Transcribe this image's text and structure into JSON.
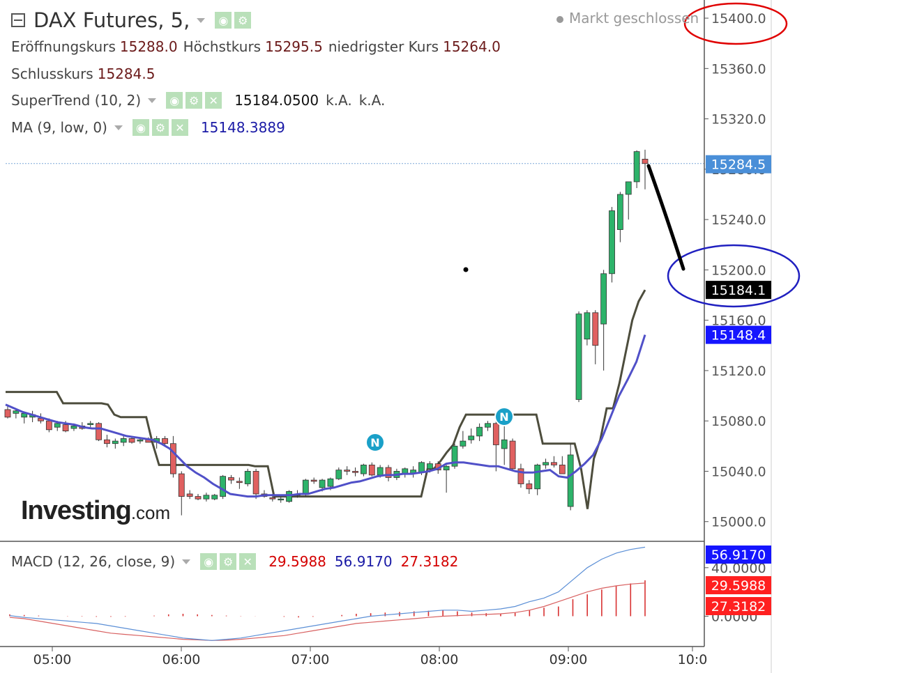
{
  "header": {
    "title": "DAX Futures, 5,",
    "status": "Markt geschlossen",
    "open_label": "Eröffnungskurs",
    "open": "15288.0",
    "high_label": "Höchstkurs",
    "high": "15295.5",
    "low_label": "niedrigster Kurs",
    "low": "15264.0",
    "close_label": "Schlusskurs",
    "close": "15284.5"
  },
  "indicators": {
    "supertrend": {
      "label": "SuperTrend (10, 2)",
      "value": "15184.0500",
      "na1": "k.A.",
      "na2": "k.A."
    },
    "ma": {
      "label": "MA (9, low, 0)",
      "value": "15148.3889"
    },
    "macd": {
      "label": "MACD (12, 26, close, 9)",
      "hist": "29.5988",
      "macd": "56.9170",
      "signal": "27.3182"
    }
  },
  "branding": {
    "logo_main": "Investing",
    "logo_suffix": ".com"
  },
  "colors": {
    "up": "#2db36a",
    "down": "#e06060",
    "supertrend": "#4d4d3d",
    "ma": "#5050c8",
    "macd_line": "#5b8fd6",
    "signal_line": "#d86060",
    "hist": "#d83030",
    "annot_red": "#e00000",
    "annot_blue": "#2020c0",
    "tag_blue": "#1515ff",
    "tag_price": "#4a8fd8",
    "tag_red": "#ff2020"
  },
  "chart_data": {
    "type": "candlestick",
    "instrument": "DAX Futures",
    "interval": "5",
    "x_ticks": [
      "05:00",
      "06:00",
      "07:00",
      "08:00",
      "09:00",
      "10:0"
    ],
    "y_ticks": [
      15000.0,
      15040.0,
      15080.0,
      15120.0,
      15160.0,
      15200.0,
      15240.0,
      15280.0,
      15320.0,
      15360.0,
      15400.0
    ],
    "ylim": [
      14986,
      15410
    ],
    "candles": [
      [
        15089,
        15093,
        15082,
        15083
      ],
      [
        15086,
        15090,
        15082,
        15088
      ],
      [
        15083,
        15087,
        15078,
        15086
      ],
      [
        15083,
        15088,
        15079,
        15085
      ],
      [
        15082,
        15086,
        15078,
        15080
      ],
      [
        15080,
        15082,
        15071,
        15073
      ],
      [
        15075,
        15080,
        15072,
        15078
      ],
      [
        15077,
        15080,
        15071,
        15072
      ],
      [
        15074,
        15078,
        15072,
        15076
      ],
      [
        15076,
        15079,
        15073,
        15074
      ],
      [
        15077,
        15080,
        15075,
        15078
      ],
      [
        15078,
        15079,
        15064,
        15065
      ],
      [
        15065,
        15069,
        15059,
        15062
      ],
      [
        15062,
        15066,
        15058,
        15064
      ],
      [
        15063,
        15068,
        15060,
        15066
      ],
      [
        15066,
        15068,
        15062,
        15063
      ],
      [
        15064,
        15067,
        15062,
        15065
      ],
      [
        15065,
        15067,
        15063,
        15063
      ],
      [
        15063,
        15068,
        15058,
        15066
      ],
      [
        15066,
        15068,
        15060,
        15062
      ],
      [
        15062,
        15068,
        15035,
        15038
      ],
      [
        15038,
        15040,
        15005,
        15020
      ],
      [
        15022,
        15025,
        15018,
        15020
      ],
      [
        15020,
        15022,
        15017,
        15018
      ],
      [
        15018,
        15023,
        15016,
        15021
      ],
      [
        15018,
        15022,
        15017,
        15021
      ],
      [
        15020,
        15037,
        15018,
        15036
      ],
      [
        15035,
        15037,
        15030,
        15033
      ],
      [
        15032,
        15035,
        15026,
        15031
      ],
      [
        15030,
        15042,
        15028,
        15040
      ],
      [
        15040,
        15042,
        15018,
        15022
      ],
      [
        15022,
        15025,
        15019,
        15020
      ],
      [
        15019,
        15022,
        15016,
        15018
      ],
      [
        15018,
        15020,
        15015,
        15018
      ],
      [
        15016,
        15025,
        15015,
        15024
      ],
      [
        15021,
        15025,
        15019,
        15022
      ],
      [
        15022,
        15034,
        15020,
        15033
      ],
      [
        15033,
        15035,
        15030,
        15032
      ],
      [
        15027,
        15034,
        15024,
        15033
      ],
      [
        15028,
        15035,
        15025,
        15034
      ],
      [
        15034,
        15043,
        15033,
        15041
      ],
      [
        15041,
        15044,
        15037,
        15040
      ],
      [
        15040,
        15043,
        15036,
        15039
      ],
      [
        15038,
        15046,
        15036,
        15045
      ],
      [
        15045,
        15047,
        15036,
        15037
      ],
      [
        15037,
        15045,
        15035,
        15043
      ],
      [
        15043,
        15045,
        15032,
        15035
      ],
      [
        15035,
        15042,
        15033,
        15040
      ],
      [
        15038,
        15043,
        15035,
        15042
      ],
      [
        15038,
        15044,
        15035,
        15041
      ],
      [
        15039,
        15048,
        15037,
        15047
      ],
      [
        15042,
        15048,
        15039,
        15046
      ],
      [
        15046,
        15048,
        15038,
        15041
      ],
      [
        15041,
        15045,
        15023,
        15044
      ],
      [
        15044,
        15062,
        15042,
        15060
      ],
      [
        15060,
        15072,
        15058,
        15064
      ],
      [
        15065,
        15074,
        15062,
        15068
      ],
      [
        15068,
        15078,
        15064,
        15075
      ],
      [
        15075,
        15080,
        15072,
        15078
      ],
      [
        15078,
        15080,
        15040,
        15061
      ],
      [
        15058,
        15088,
        15045,
        15065
      ],
      [
        15064,
        15066,
        15040,
        15042
      ],
      [
        15042,
        15046,
        15027,
        15030
      ],
      [
        15030,
        15033,
        15022,
        15026
      ],
      [
        15026,
        15046,
        15021,
        15045
      ],
      [
        15045,
        15050,
        15042,
        15047
      ],
      [
        15047,
        15052,
        15043,
        15045
      ],
      [
        15045,
        15052,
        15042,
        15038
      ],
      [
        15012,
        15062,
        15009,
        15053
      ],
      [
        15097,
        15167,
        15095,
        15165
      ],
      [
        15145,
        15168,
        15140,
        15166
      ],
      [
        15166,
        15168,
        15125,
        15140
      ],
      [
        15157,
        15200,
        15120,
        15197
      ],
      [
        15197,
        15250,
        15190,
        15247
      ],
      [
        15232,
        15262,
        15222,
        15260
      ],
      [
        15260,
        15270,
        15240,
        15270
      ],
      [
        15270,
        15295,
        15265,
        15294
      ],
      [
        15288,
        15295.5,
        15264,
        15284.5
      ]
    ],
    "supertrend": [
      15103,
      15103,
      15103,
      15103,
      15103,
      15103,
      15103,
      15103,
      15103,
      15094,
      15094,
      15094,
      15094,
      15094,
      15094,
      15094,
      15093,
      15085,
      15083,
      15083,
      15083,
      15083,
      15083,
      15062,
      15045,
      15045,
      15045,
      15045,
      15045,
      15045,
      15045,
      15045,
      15045,
      15045,
      15045,
      15045,
      15045,
      15045,
      15045,
      15044,
      15044,
      15044,
      15020,
      15020,
      15020,
      15020,
      15020,
      15020,
      15020,
      15020,
      15020,
      15020,
      15020,
      15020,
      15020,
      15020,
      15020,
      15020,
      15020,
      15020,
      15020,
      15020,
      15020,
      15020,
      15020,
      15020,
      15042,
      15042,
      15048,
      15055,
      15061,
      15075,
      15085,
      15085,
      15085,
      15085,
      15085,
      15085,
      15085,
      15085,
      15085,
      15085,
      15085,
      15085,
      15062,
      15062,
      15062,
      15062,
      15062,
      15062,
      15042,
      15010,
      15050,
      15065,
      15090,
      15090,
      15110,
      15135,
      15160,
      15175,
      15184.05
    ],
    "ma": [
      15093,
      15090,
      15087,
      15085,
      15083,
      15081,
      15079,
      15078,
      15077,
      15075,
      15074,
      15074,
      15072,
      15070,
      15068,
      15067,
      15066,
      15065,
      15062,
      15058,
      15051,
      15044,
      15039,
      15035,
      15030,
      15026,
      15022,
      15021,
      15020,
      15020,
      15021,
      15021,
      15021,
      15021,
      15022,
      15022,
      15024,
      15026,
      15027,
      15029,
      15031,
      15032,
      15034,
      15036,
      15037,
      15037,
      15038,
      15038,
      15039,
      15040,
      15042,
      15046,
      15047,
      15047,
      15046,
      15045,
      15044,
      15044,
      15042,
      15040,
      15039,
      15039,
      15040,
      15041,
      15036,
      15035,
      15040,
      15046,
      15053,
      15066,
      15083,
      15100,
      15113,
      15127,
      15148.4
    ],
    "macd_line": [
      0.5,
      -1,
      -2,
      -3,
      -4,
      -5,
      -6,
      -8,
      -10,
      -12,
      -14,
      -16,
      -18,
      -19,
      -20,
      -19,
      -18,
      -16,
      -14,
      -12,
      -10,
      -8,
      -6,
      -4,
      -2,
      0,
      1,
      2,
      3,
      4,
      5,
      5,
      4,
      5,
      6,
      8,
      12,
      15,
      20,
      30,
      40,
      47,
      52,
      55,
      56.917
    ],
    "signal_line": [
      -1,
      -2,
      -4,
      -6,
      -8,
      -10,
      -12,
      -14,
      -15,
      -16,
      -17,
      -18,
      -19,
      -19.5,
      -20,
      -19.8,
      -19,
      -18,
      -17,
      -16,
      -14,
      -12,
      -10,
      -8,
      -6,
      -5,
      -4,
      -3,
      -2,
      -1,
      0,
      0.5,
      1,
      1.5,
      2,
      3,
      5,
      8,
      12,
      16,
      20,
      23,
      25,
      26.5,
      27.318
    ],
    "hist": [
      1.5,
      1,
      0.5,
      0,
      -0.2,
      -0.3,
      -0.5,
      -0.5,
      -0.4,
      0,
      0.5,
      1.5,
      2,
      1.5,
      1,
      0.5,
      0.2,
      0.1,
      0,
      -0.5,
      -1,
      -0.5,
      0,
      1,
      2,
      2.5,
      3,
      3.5,
      4,
      4.5,
      5,
      4,
      3,
      2.5,
      2,
      3,
      5,
      7,
      8,
      14,
      18,
      22,
      25,
      27,
      29.5988
    ],
    "macd_ylim": [
      -25,
      60
    ],
    "macd_y_ticks": [
      0.0,
      40.0
    ]
  },
  "tags": {
    "last_price": "15284.5",
    "supertrend": "15184.1",
    "ma": "15148.4",
    "macd_line": "56.9170",
    "macd_hist": "29.5988",
    "macd_signal": "27.3182"
  },
  "markers": {
    "news_label": "N"
  }
}
